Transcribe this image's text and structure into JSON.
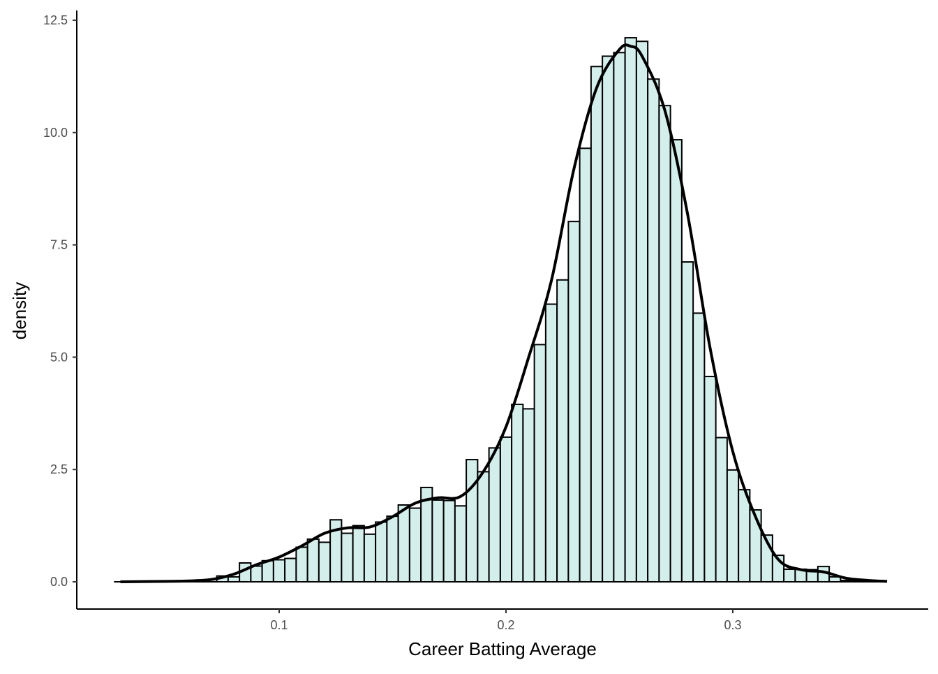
{
  "chart_data": {
    "type": "bar",
    "subtype": "histogram-with-density",
    "title": "",
    "xlabel": "Career Batting Average",
    "ylabel": "density",
    "xlim": [
      0.0275,
      0.3675
    ],
    "ylim": [
      -0.6,
      12.75
    ],
    "x_ticks": [
      0.1,
      0.2,
      0.3
    ],
    "x_tick_labels": [
      "0.1",
      "0.2",
      "0.3"
    ],
    "y_ticks": [
      0,
      2.5,
      5,
      7.5,
      10,
      12.5
    ],
    "y_tick_labels": [
      "0.0",
      "2.5",
      "5.0",
      "7.5",
      "10.0",
      "12.5"
    ],
    "grid": false,
    "bin_width": 0.005,
    "bin_centers": [
      0.03,
      0.035,
      0.04,
      0.045,
      0.05,
      0.055,
      0.06,
      0.065,
      0.07,
      0.075,
      0.08,
      0.085,
      0.09,
      0.095,
      0.1,
      0.105,
      0.11,
      0.115,
      0.12,
      0.125,
      0.13,
      0.135,
      0.14,
      0.145,
      0.15,
      0.155,
      0.16,
      0.165,
      0.17,
      0.175,
      0.18,
      0.185,
      0.19,
      0.195,
      0.2,
      0.205,
      0.21,
      0.215,
      0.22,
      0.225,
      0.23,
      0.235,
      0.24,
      0.245,
      0.25,
      0.255,
      0.26,
      0.265,
      0.27,
      0.275,
      0.28,
      0.285,
      0.29,
      0.295,
      0.3,
      0.305,
      0.31,
      0.315,
      0.32,
      0.325,
      0.33,
      0.335,
      0.34,
      0.345,
      0.35,
      0.355,
      0.36,
      0.365
    ],
    "values": [
      0,
      0,
      0,
      0,
      0,
      0,
      0,
      0,
      0,
      0.13,
      0.11,
      0.42,
      0.35,
      0.47,
      0.49,
      0.52,
      0.77,
      0.95,
      0.88,
      1.38,
      1.08,
      1.25,
      1.06,
      1.33,
      1.46,
      1.71,
      1.64,
      2.1,
      1.82,
      1.81,
      1.69,
      2.72,
      2.45,
      2.98,
      3.22,
      3.95,
      3.85,
      5.28,
      6.18,
      6.72,
      8.02,
      9.65,
      11.47,
      11.7,
      11.78,
      12.11,
      12.03,
      11.19,
      10.6,
      9.84,
      7.12,
      5.98,
      4.57,
      3.21,
      2.49,
      2.05,
      1.6,
      1.04,
      0.59,
      0.28,
      0.28,
      0.27,
      0.34,
      0.11,
      0.03,
      0.02,
      0.01,
      0.01
    ],
    "bar_fill": "#d4eeec",
    "bar_stroke": "#000000",
    "density_curve": {
      "color": "#000000",
      "x": [
        0.03,
        0.05,
        0.06,
        0.07,
        0.08,
        0.09,
        0.1,
        0.11,
        0.12,
        0.13,
        0.14,
        0.15,
        0.16,
        0.17,
        0.18,
        0.19,
        0.2,
        0.21,
        0.22,
        0.23,
        0.24,
        0.25,
        0.255,
        0.26,
        0.27,
        0.28,
        0.29,
        0.3,
        0.31,
        0.32,
        0.33,
        0.34,
        0.35,
        0.36,
        0.368
      ],
      "y": [
        0,
        0.01,
        0.02,
        0.05,
        0.17,
        0.38,
        0.55,
        0.8,
        1.08,
        1.2,
        1.22,
        1.45,
        1.75,
        1.87,
        1.9,
        2.45,
        3.45,
        5.0,
        6.7,
        9.2,
        11.0,
        11.85,
        11.92,
        11.7,
        10.5,
        8.2,
        5.2,
        2.9,
        1.45,
        0.5,
        0.27,
        0.22,
        0.08,
        0.03,
        0.01
      ]
    }
  }
}
